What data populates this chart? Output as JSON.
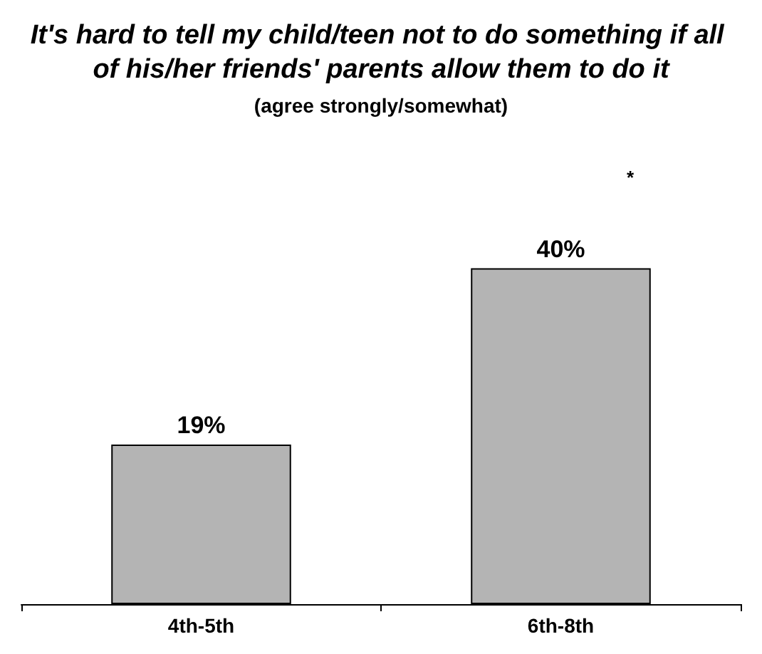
{
  "chart_data": {
    "type": "bar",
    "title": "It's hard to tell my child/teen not to do something if all of his/her friends' parents allow them to do it",
    "subtitle": "(agree strongly/somewhat)",
    "annotations": [
      "*"
    ],
    "categories": [
      "4th-5th",
      "6th-8th"
    ],
    "values": [
      19,
      40
    ],
    "value_labels": [
      "19%",
      "40%"
    ],
    "color": "#b4b4b4"
  }
}
